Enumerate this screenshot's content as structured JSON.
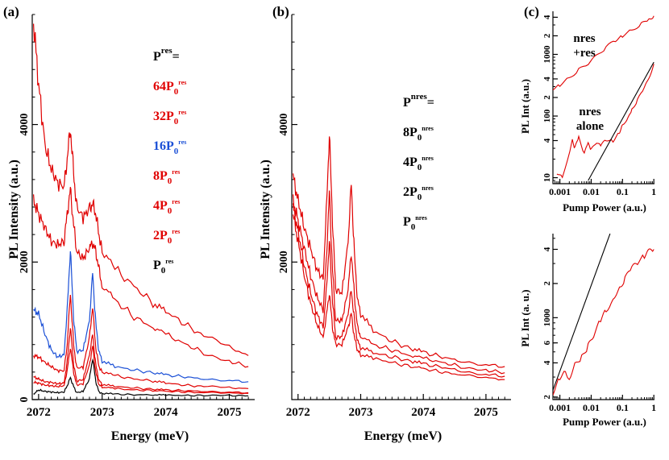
{
  "panels": {
    "a": {
      "label": "(a)",
      "chart_data": {
        "type": "line",
        "xlabel": "Energy (meV)",
        "ylabel": "PL Intensity (a.u.)",
        "xlim": [
          2071.9,
          2075.4
        ],
        "ylim": [
          0,
          5600
        ],
        "x_ticks": [
          2072,
          2073,
          2074,
          2075
        ],
        "y_ticks": [
          0,
          2000,
          4000
        ],
        "legend_title": {
          "main": "P",
          "sup": "res",
          "suffix": "="
        },
        "legend": [
          {
            "prefix": "64",
            "main": "P",
            "sub": "0",
            "sup": "res",
            "color": "#e00000"
          },
          {
            "prefix": "32",
            "main": "P",
            "sub": "0",
            "sup": "res",
            "color": "#e00000"
          },
          {
            "prefix": "16",
            "main": "P",
            "sub": "0",
            "sup": "res",
            "color": "#1a4fd6"
          },
          {
            "prefix": "8",
            "main": "P",
            "sub": "0",
            "sup": "res",
            "color": "#e00000"
          },
          {
            "prefix": "4",
            "main": "P",
            "sub": "0",
            "sup": "res",
            "color": "#e00000"
          },
          {
            "prefix": "2",
            "main": "P",
            "sub": "0",
            "sup": "res",
            "color": "#e00000"
          },
          {
            "prefix": "",
            "main": "P",
            "sub": "0",
            "sup": "res",
            "color": "#000000"
          }
        ],
        "x": [
          2071.92,
          2072.0,
          2072.1,
          2072.2,
          2072.3,
          2072.4,
          2072.45,
          2072.5,
          2072.55,
          2072.6,
          2072.7,
          2072.8,
          2072.85,
          2072.9,
          2072.95,
          2073.0,
          2073.2,
          2073.5,
          2073.8,
          2074.0,
          2074.3,
          2074.6,
          2075.0,
          2075.3
        ],
        "series": [
          {
            "name": "64P0res",
            "color": "#e00000",
            "values": [
              5500,
              4600,
              3700,
              3350,
              3150,
              3100,
              3500,
              3950,
              3300,
              2800,
              2650,
              2780,
              2850,
              2700,
              2400,
              2150,
              1900,
              1650,
              1400,
              1280,
              1100,
              920,
              760,
              640
            ]
          },
          {
            "name": "32P0res",
            "color": "#e00000",
            "values": [
              2900,
              2700,
              2500,
              2300,
              2250,
              2300,
              2700,
              3050,
              2550,
              2150,
              2050,
              2200,
              2280,
              2150,
              1900,
              1650,
              1450,
              1200,
              1050,
              950,
              810,
              680,
              560,
              480
            ]
          },
          {
            "name": "16P0res",
            "color": "#1a4fd6",
            "values": [
              1300,
              1250,
              950,
              720,
              620,
              650,
              1300,
              2180,
              1200,
              700,
              720,
              1150,
              1850,
              1100,
              700,
              560,
              480,
              430,
              390,
              360,
              330,
              300,
              280,
              260
            ]
          },
          {
            "name": "8P0res",
            "color": "#e00000",
            "values": [
              640,
              620,
              540,
              480,
              420,
              420,
              800,
              1550,
              800,
              460,
              470,
              900,
              1350,
              750,
              480,
              400,
              350,
              300,
              270,
              240,
              210,
              190,
              170,
              160
            ]
          },
          {
            "name": "4P0res",
            "color": "#e00000",
            "values": [
              330,
              300,
              260,
              250,
              230,
              240,
              550,
              1050,
              520,
              270,
              290,
              650,
              950,
              500,
              280,
              220,
              190,
              170,
              150,
              140,
              130,
              120,
              110,
              100
            ]
          },
          {
            "name": "2P0res",
            "color": "#e00000",
            "values": [
              250,
              240,
              210,
              200,
              190,
              200,
              420,
              760,
              400,
              210,
              230,
              500,
              780,
              390,
              220,
              180,
              160,
              140,
              130,
              120,
              110,
              100,
              95,
              90
            ]
          },
          {
            "name": "P0res",
            "color": "#000000",
            "values": [
              80,
              140,
              120,
              110,
              100,
              110,
              200,
              320,
              190,
              100,
              120,
              300,
              600,
              260,
              110,
              90,
              80,
              70,
              70,
              65,
              60,
              60,
              60,
              55
            ]
          }
        ]
      }
    },
    "b": {
      "label": "(b)",
      "chart_data": {
        "type": "line",
        "xlabel": "Energy (meV)",
        "ylabel": "PL Intensity (a.u.)",
        "xlim": [
          2071.9,
          2075.4
        ],
        "ylim": [
          0,
          5600
        ],
        "x_ticks": [
          2072,
          2073,
          2074,
          2075
        ],
        "y_ticks": [
          2000,
          4000
        ],
        "legend_title": {
          "main": "P",
          "sup": "nres",
          "suffix": "="
        },
        "legend": [
          {
            "prefix": "8",
            "main": "P",
            "sub": "0",
            "sup": "nres",
            "color": "#000000"
          },
          {
            "prefix": "4",
            "main": "P",
            "sub": "0",
            "sup": "nres",
            "color": "#000000"
          },
          {
            "prefix": "2",
            "main": "P",
            "sub": "0",
            "sup": "nres",
            "color": "#000000"
          },
          {
            "prefix": "",
            "main": "P",
            "sub": "0",
            "sup": "nres",
            "color": "#000000"
          }
        ],
        "x": [
          2071.92,
          2072.0,
          2072.1,
          2072.2,
          2072.3,
          2072.4,
          2072.45,
          2072.5,
          2072.55,
          2072.6,
          2072.7,
          2072.8,
          2072.85,
          2072.9,
          2072.95,
          2073.0,
          2073.2,
          2073.5,
          2073.8,
          2074.0,
          2074.3,
          2074.6,
          2075.0,
          2075.3
        ],
        "series": [
          {
            "name": "8P0nres",
            "color": "#e00000",
            "values": [
              3250,
              2900,
              2500,
              2200,
              1900,
              1750,
              2700,
              3850,
              2600,
              1600,
              1550,
              2300,
              3150,
              2100,
              1450,
              1250,
              1000,
              850,
              740,
              690,
              620,
              560,
              510,
              480
            ]
          },
          {
            "name": "4P0nres",
            "color": "#e00000",
            "values": [
              2900,
              2600,
              2200,
              1800,
              1500,
              1300,
              2000,
              3000,
              1900,
              1150,
              1150,
              1600,
              2150,
              1500,
              1050,
              920,
              800,
              720,
              640,
              600,
              540,
              480,
              430,
              390
            ]
          },
          {
            "name": "2P0nres",
            "color": "#e00000",
            "values": [
              2800,
              2450,
              1950,
              1550,
              1250,
              1050,
              1550,
              2300,
              1450,
              900,
              920,
              1250,
              1600,
              1150,
              850,
              760,
              680,
              620,
              560,
              520,
              470,
              420,
              370,
              340
            ]
          },
          {
            "name": "P0nres",
            "color": "#e00000",
            "values": [
              2700,
              2300,
              1800,
              1400,
              1100,
              900,
              1200,
              1550,
              1050,
              800,
              800,
              1050,
              1250,
              900,
              720,
              650,
              600,
              540,
              480,
              450,
              400,
              360,
              320,
              290
            ]
          }
        ]
      }
    },
    "c": {
      "label": "(c)",
      "top": {
        "chart_data": {
          "type": "line",
          "xscale": "log",
          "yscale": "log",
          "xlabel": "Pump Power (a.u.)",
          "ylabel": "PL Int (a.u.)",
          "xlim": [
            0.0006,
            1.05
          ],
          "ylim": [
            8,
            5000
          ],
          "x_ticks": [
            {
              "v": 0.001,
              "t": "0.001"
            },
            {
              "v": 0.01,
              "t": "0.01"
            },
            {
              "v": 0.1,
              "t": "0.1"
            },
            {
              "v": 1,
              "t": "1"
            }
          ],
          "y_ticks": [
            {
              "v": 10,
              "t": "10"
            },
            {
              "v": 40,
              "t": "4"
            },
            {
              "v": 100,
              "t": "100"
            },
            {
              "v": 200,
              "t": "2"
            },
            {
              "v": 400,
              "t": "4"
            },
            {
              "v": 1000,
              "t": "1000"
            },
            {
              "v": 2000,
              "t": "2"
            },
            {
              "v": 4000,
              "t": "4"
            }
          ],
          "annotations": [
            [
              "nres",
              "+res"
            ],
            [
              "nres",
              "alone"
            ]
          ],
          "series": [
            {
              "name": "nres+res",
              "color": "#e00000",
              "x": [
                0.0006,
                0.001,
                0.002,
                0.004,
                0.008,
                0.015,
                0.03,
                0.06,
                0.1,
                0.2,
                0.4,
                0.7,
                1.0
              ],
              "y": [
                280,
                320,
                420,
                560,
                700,
                950,
                1300,
                1700,
                2000,
                2500,
                3100,
                3700,
                4200
              ]
            },
            {
              "name": "nres alone",
              "color": "#e00000",
              "x": [
                0.0008,
                0.0012,
                0.0025,
                0.003,
                0.004,
                0.006,
                0.008,
                0.01,
                0.015,
                0.02,
                0.03,
                0.05,
                0.08,
                0.1,
                0.15,
                0.2,
                0.3,
                0.5,
                0.7,
                1.0
              ],
              "y": [
                12,
                10,
                40,
                30,
                45,
                25,
                35,
                28,
                38,
                32,
                42,
                40,
                55,
                75,
                90,
                130,
                180,
                280,
                420,
                700
              ]
            },
            {
              "name": "fit",
              "color": "#000000",
              "x": [
                0.008,
                1.0
              ],
              "y": [
                9,
                750
              ]
            }
          ]
        }
      },
      "bottom": {
        "chart_data": {
          "type": "line",
          "xscale": "log",
          "yscale": "log",
          "xlabel": "Pump Power (a.u.)",
          "ylabel": "PL Int (a. u.)",
          "xlim": [
            0.0006,
            1.05
          ],
          "ylim": [
            190,
            5500
          ],
          "x_ticks": [
            {
              "v": 0.001,
              "t": "0.001"
            },
            {
              "v": 0.01,
              "t": "0.01"
            },
            {
              "v": 0.1,
              "t": "0.1"
            },
            {
              "v": 1,
              "t": "1"
            }
          ],
          "y_ticks": [
            {
              "v": 200,
              "t": "2"
            },
            {
              "v": 400,
              "t": "4"
            },
            {
              "v": 600,
              "t": "6"
            },
            {
              "v": 1000,
              "t": "1000"
            },
            {
              "v": 2000,
              "t": "2"
            },
            {
              "v": 4000,
              "t": "4"
            }
          ],
          "series": [
            {
              "name": "data",
              "color": "#e00000",
              "x": [
                0.0006,
                0.001,
                0.0015,
                0.002,
                0.003,
                0.005,
                0.008,
                0.012,
                0.02,
                0.03,
                0.05,
                0.08,
                0.12,
                0.2,
                0.3,
                0.5,
                0.7,
                1.0
              ],
              "y": [
                220,
                300,
                330,
                300,
                380,
                450,
                560,
                700,
                950,
                1150,
                1500,
                1850,
                2200,
                2700,
                3100,
                3500,
                3800,
                4000
              ]
            },
            {
              "name": "fit",
              "color": "#000000",
              "x": [
                0.0006,
                0.04
              ],
              "y": [
                230,
                5500
              ]
            }
          ]
        }
      }
    }
  }
}
